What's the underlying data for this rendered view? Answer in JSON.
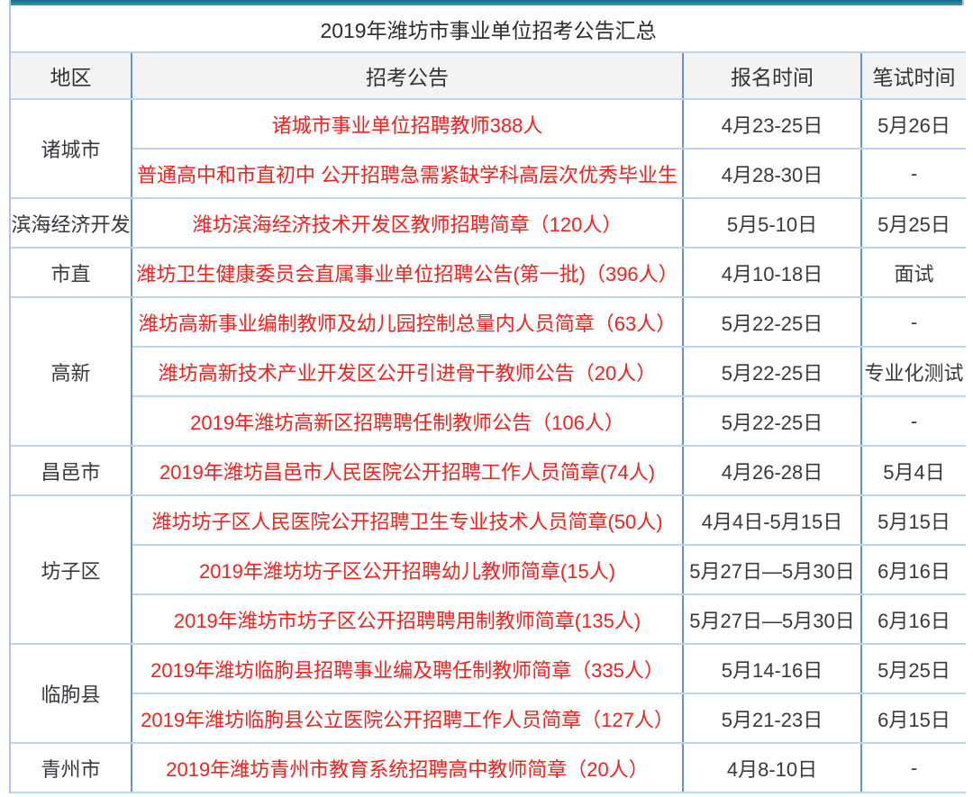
{
  "title": "2019年潍坊市事业单位招考公告汇总",
  "table": {
    "headers": [
      "地区",
      "招考公告",
      "报名时间",
      "笔试时间"
    ],
    "groups": [
      {
        "region": "诸城市",
        "rows": [
          {
            "announcement": "诸城市事业单位招聘教师388人",
            "signup_time": "4月23-25日",
            "exam_time": "5月26日"
          },
          {
            "announcement": "普通高中和市直初中 公开招聘急需紧缺学科高层次优秀毕业生",
            "signup_time": "4月28-30日",
            "exam_time": "-"
          }
        ]
      },
      {
        "region": "滨海经济开发",
        "rows": [
          {
            "announcement": "潍坊滨海经济技术开发区教师招聘简章（120人）",
            "signup_time": "5月5-10日",
            "exam_time": "5月25日"
          }
        ]
      },
      {
        "region": "市直",
        "rows": [
          {
            "announcement": "潍坊卫生健康委员会直属事业单位招聘公告(第一批)（396人）",
            "signup_time": "4月10-18日",
            "exam_time": "面试"
          }
        ]
      },
      {
        "region": "高新",
        "rows": [
          {
            "announcement": "潍坊高新事业编制教师及幼儿园控制总量内人员简章（63人）",
            "signup_time": "5月22-25日",
            "exam_time": "-"
          },
          {
            "announcement": "潍坊高新技术产业开发区公开引进骨干教师公告（20人）",
            "signup_time": "5月22-25日",
            "exam_time": "专业化测试"
          },
          {
            "announcement": "2019年潍坊高新区招聘聘任制教师公告（106人）",
            "signup_time": "5月22-25日",
            "exam_time": "-"
          }
        ]
      },
      {
        "region": "昌邑市",
        "rows": [
          {
            "announcement": "2019年潍坊昌邑市人民医院公开招聘工作人员简章(74人)",
            "signup_time": "4月26-28日",
            "exam_time": "5月4日"
          }
        ]
      },
      {
        "region": "坊子区",
        "rows": [
          {
            "announcement": "潍坊坊子区人民医院公开招聘卫生专业技术人员简章(50人)",
            "signup_time": "4月4日-5月15日",
            "exam_time": "5月15日"
          },
          {
            "announcement": "2019年潍坊坊子区公开招聘幼儿教师简章(15人)",
            "signup_time": "5月27日—5月30日",
            "exam_time": "6月16日"
          },
          {
            "announcement": "2019年潍坊市坊子区公开招聘聘用制教师简章(135人)",
            "signup_time": "5月27日—5月30日",
            "exam_time": "6月16日"
          }
        ]
      },
      {
        "region": "临朐县",
        "rows": [
          {
            "announcement": "2019年潍坊临朐县招聘事业编及聘任制教师简章（335人）",
            "signup_time": "5月14-16日",
            "exam_time": "5月25日"
          },
          {
            "announcement": "2019年潍坊临朐县公立医院公开招聘工作人员简章（127人）",
            "signup_time": "5月21-23日",
            "exam_time": "6月15日"
          }
        ]
      },
      {
        "region": "青州市",
        "rows": [
          {
            "announcement": "2019年潍坊青州市教育系统招聘高中教师简章（20人）",
            "signup_time": "4月8-10日",
            "exam_time": "-"
          }
        ]
      }
    ]
  },
  "colors": {
    "announcement_red": "#f3221f",
    "topbar_teal_dark": "#106e7e",
    "topbar_teal_light": "#2f9cb1",
    "grid_vertical_blue": "#6693d4",
    "grid_horizontal_blue": "#bed4ef",
    "outer_border_lavender": "#b5bfe8",
    "header_bg_gray": "#f3f3f3",
    "text_dark": "#333333"
  }
}
